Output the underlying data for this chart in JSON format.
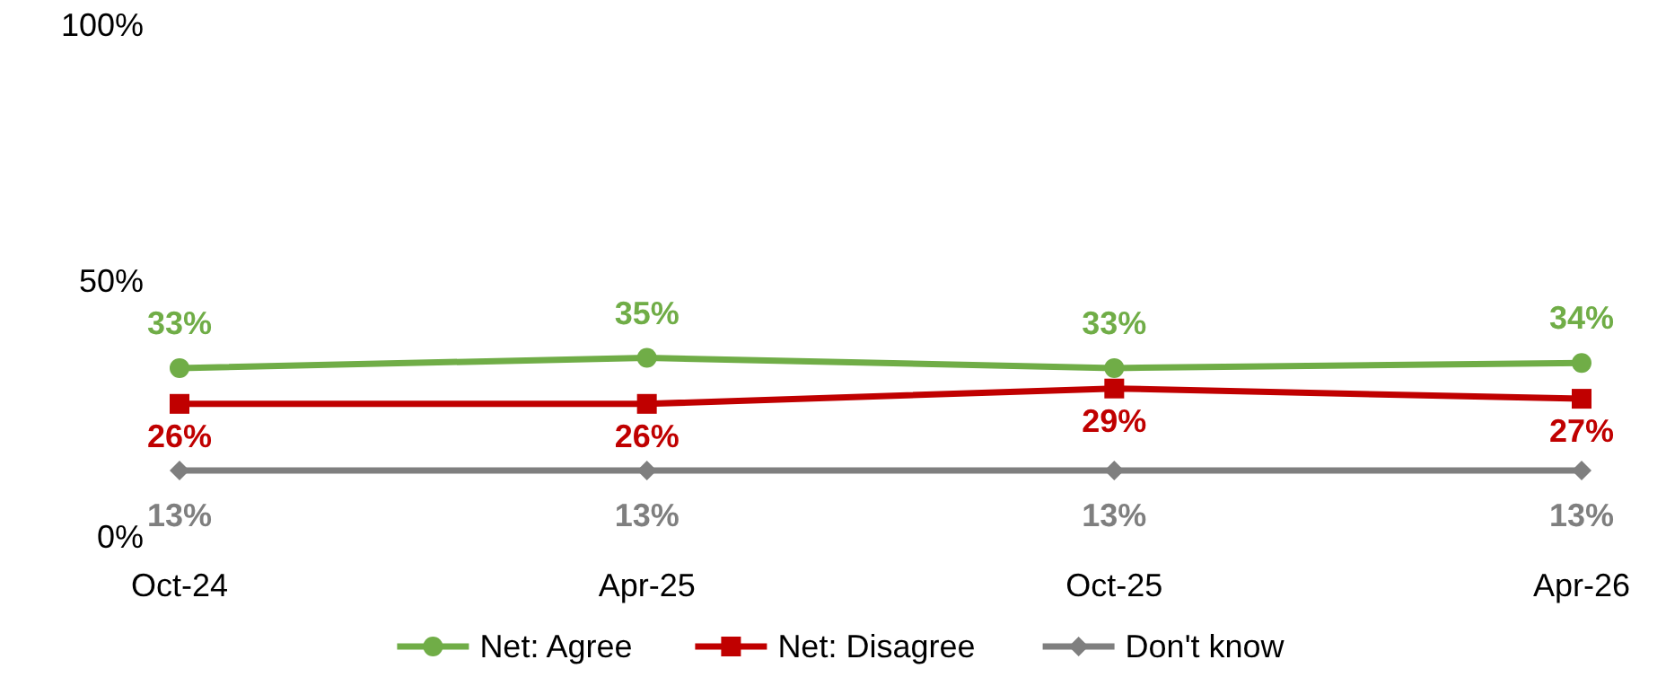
{
  "chart_data": {
    "type": "line",
    "categories": [
      "Oct-24",
      "Apr-25",
      "Oct-25",
      "Apr-26"
    ],
    "ylim": [
      0,
      100
    ],
    "yticks": [
      {
        "value": 0,
        "label": "0%"
      },
      {
        "value": 50,
        "label": "50%"
      },
      {
        "value": 100,
        "label": "100%"
      }
    ],
    "grid": false,
    "legend": "bottom",
    "data_labels": true,
    "line_style": "solid",
    "series": [
      {
        "name": "Net: Agree",
        "color": "#70ad47",
        "marker": "circle",
        "values": [
          33,
          35,
          33,
          34
        ],
        "value_labels": [
          "33%",
          "35%",
          "33%",
          "34%"
        ]
      },
      {
        "name": "Net: Disagree",
        "color": "#c00000",
        "marker": "square",
        "values": [
          26,
          26,
          29,
          27
        ],
        "value_labels": [
          "26%",
          "26%",
          "29%",
          "27%"
        ]
      },
      {
        "name": "Don't know",
        "color": "#7f7f7f",
        "marker": "diamond",
        "values": [
          13,
          13,
          13,
          13
        ],
        "value_labels": [
          "13%",
          "13%",
          "13%",
          "13%"
        ]
      }
    ]
  }
}
